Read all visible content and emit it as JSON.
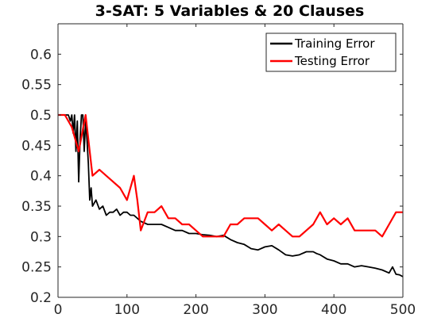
{
  "chart_data": {
    "type": "line",
    "title": "3-SAT: 5 Variables & 20 Clauses",
    "xlabel": "",
    "ylabel": "",
    "xlim": [
      0,
      500
    ],
    "ylim": [
      0.2,
      0.65
    ],
    "xticks": [
      0,
      100,
      200,
      300,
      400,
      500
    ],
    "yticks": [
      0.2,
      0.25,
      0.3,
      0.35,
      0.4,
      0.45,
      0.5,
      0.55,
      0.6
    ],
    "xtick_labels": [
      "0",
      "100",
      "200",
      "300",
      "400",
      "500"
    ],
    "ytick_labels": [
      "0.2",
      "0.25",
      "0.3",
      "0.35",
      "0.4",
      "0.45",
      "0.5",
      "0.55",
      "0.6"
    ],
    "grid": false,
    "legend_position": "top-right",
    "series": [
      {
        "name": "Training Error",
        "color": "#000000",
        "x": [
          0,
          15,
          18,
          20,
          22,
          24,
          26,
          28,
          30,
          32,
          34,
          36,
          38,
          40,
          42,
          44,
          46,
          48,
          50,
          55,
          60,
          65,
          70,
          75,
          80,
          85,
          90,
          95,
          100,
          105,
          110,
          115,
          120,
          130,
          140,
          150,
          160,
          170,
          180,
          190,
          200,
          210,
          220,
          230,
          240,
          250,
          260,
          270,
          280,
          290,
          300,
          310,
          320,
          330,
          340,
          350,
          360,
          370,
          375,
          380,
          390,
          400,
          410,
          420,
          430,
          440,
          450,
          460,
          470,
          480,
          485,
          490,
          495,
          500
        ],
        "values": [
          0.5,
          0.5,
          0.49,
          0.5,
          0.47,
          0.5,
          0.44,
          0.49,
          0.39,
          0.46,
          0.5,
          0.5,
          0.44,
          0.49,
          0.46,
          0.42,
          0.36,
          0.38,
          0.35,
          0.36,
          0.345,
          0.35,
          0.335,
          0.34,
          0.34,
          0.345,
          0.335,
          0.34,
          0.34,
          0.335,
          0.335,
          0.33,
          0.325,
          0.32,
          0.32,
          0.32,
          0.315,
          0.31,
          0.31,
          0.305,
          0.305,
          0.303,
          0.302,
          0.3,
          0.302,
          0.295,
          0.29,
          0.287,
          0.28,
          0.278,
          0.283,
          0.285,
          0.278,
          0.27,
          0.268,
          0.27,
          0.275,
          0.275,
          0.272,
          0.27,
          0.263,
          0.26,
          0.255,
          0.255,
          0.25,
          0.252,
          0.25,
          0.248,
          0.245,
          0.24,
          0.25,
          0.238,
          0.237,
          0.234
        ]
      },
      {
        "name": "Testing Error",
        "color": "#ff0000",
        "x": [
          0,
          10,
          20,
          30,
          40,
          50,
          60,
          70,
          80,
          90,
          100,
          110,
          115,
          120,
          130,
          140,
          150,
          160,
          170,
          180,
          190,
          200,
          210,
          220,
          230,
          240,
          250,
          260,
          270,
          280,
          290,
          300,
          310,
          320,
          330,
          340,
          350,
          360,
          370,
          380,
          390,
          400,
          410,
          420,
          430,
          440,
          450,
          460,
          470,
          480,
          490,
          500
        ],
        "values": [
          0.5,
          0.5,
          0.48,
          0.44,
          0.5,
          0.4,
          0.41,
          0.4,
          0.39,
          0.38,
          0.36,
          0.4,
          0.36,
          0.31,
          0.34,
          0.34,
          0.35,
          0.33,
          0.33,
          0.32,
          0.32,
          0.31,
          0.3,
          0.3,
          0.3,
          0.3,
          0.32,
          0.32,
          0.33,
          0.33,
          0.33,
          0.32,
          0.31,
          0.32,
          0.31,
          0.3,
          0.3,
          0.31,
          0.32,
          0.34,
          0.32,
          0.33,
          0.32,
          0.33,
          0.31,
          0.31,
          0.31,
          0.31,
          0.3,
          0.32,
          0.34,
          0.34
        ]
      }
    ]
  }
}
